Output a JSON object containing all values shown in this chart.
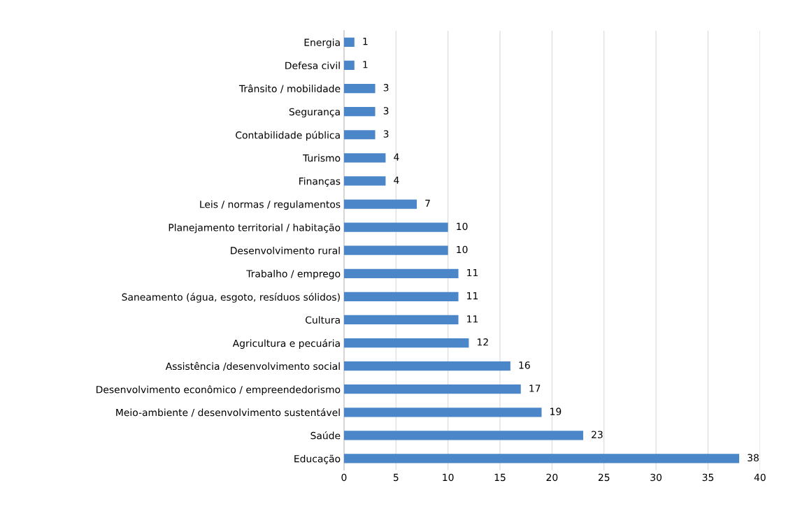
{
  "chart_data": {
    "type": "bar",
    "orientation": "horizontal",
    "categories": [
      "Energia",
      "Defesa civil",
      "Trânsito / mobilidade",
      "Segurança",
      "Contabilidade pública",
      "Turismo",
      "Finanças",
      "Leis / normas / regulamentos",
      "Planejamento territorial / habitação",
      "Desenvolvimento rural",
      "Trabalho / emprego",
      "Saneamento (água, esgoto, resíduos sólidos)",
      "Cultura",
      "Agricultura e pecuária",
      "Assistência /desenvolvimento social",
      "Desenvolvimento econômico / empreendedorismo",
      "Meio-ambiente / desenvolvimento sustentável",
      "Saúde",
      "Educação"
    ],
    "values": [
      1,
      1,
      3,
      3,
      3,
      4,
      4,
      7,
      10,
      10,
      11,
      11,
      11,
      12,
      16,
      17,
      19,
      23,
      38
    ],
    "color": "#4a86c8",
    "xlim": [
      0,
      40
    ],
    "xticks": [
      0,
      5,
      10,
      15,
      20,
      25,
      30,
      35,
      40
    ],
    "grid": "x",
    "data_labels": true
  }
}
